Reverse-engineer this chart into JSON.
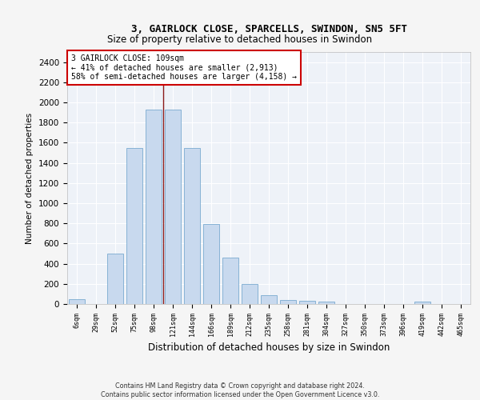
{
  "title": "3, GAIRLOCK CLOSE, SPARCELLS, SWINDON, SN5 5FT",
  "subtitle": "Size of property relative to detached houses in Swindon",
  "xlabel": "Distribution of detached houses by size in Swindon",
  "ylabel": "Number of detached properties",
  "bar_color": "#c8d9ee",
  "bar_edge_color": "#7aaad0",
  "background_color": "#eef2f8",
  "grid_color": "#ffffff",
  "annotation_line_color": "#8b1a1a",
  "categories": [
    "6sqm",
    "29sqm",
    "52sqm",
    "75sqm",
    "98sqm",
    "121sqm",
    "144sqm",
    "166sqm",
    "189sqm",
    "212sqm",
    "235sqm",
    "258sqm",
    "281sqm",
    "304sqm",
    "327sqm",
    "350sqm",
    "373sqm",
    "396sqm",
    "419sqm",
    "442sqm",
    "465sqm"
  ],
  "values": [
    50,
    0,
    500,
    1550,
    1925,
    1925,
    1550,
    790,
    460,
    195,
    90,
    40,
    30,
    20,
    0,
    0,
    0,
    0,
    20,
    0,
    0
  ],
  "ylim": [
    0,
    2500
  ],
  "yticks": [
    0,
    200,
    400,
    600,
    800,
    1000,
    1200,
    1400,
    1600,
    1800,
    2000,
    2200,
    2400
  ],
  "property_label": "3 GAIRLOCK CLOSE: 109sqm",
  "line1": "← 41% of detached houses are smaller (2,913)",
  "line2": "58% of semi-detached houses are larger (4,158) →",
  "vline_x_index": 4.5,
  "footer1": "Contains HM Land Registry data © Crown copyright and database right 2024.",
  "footer2": "Contains public sector information licensed under the Open Government Licence v3.0."
}
